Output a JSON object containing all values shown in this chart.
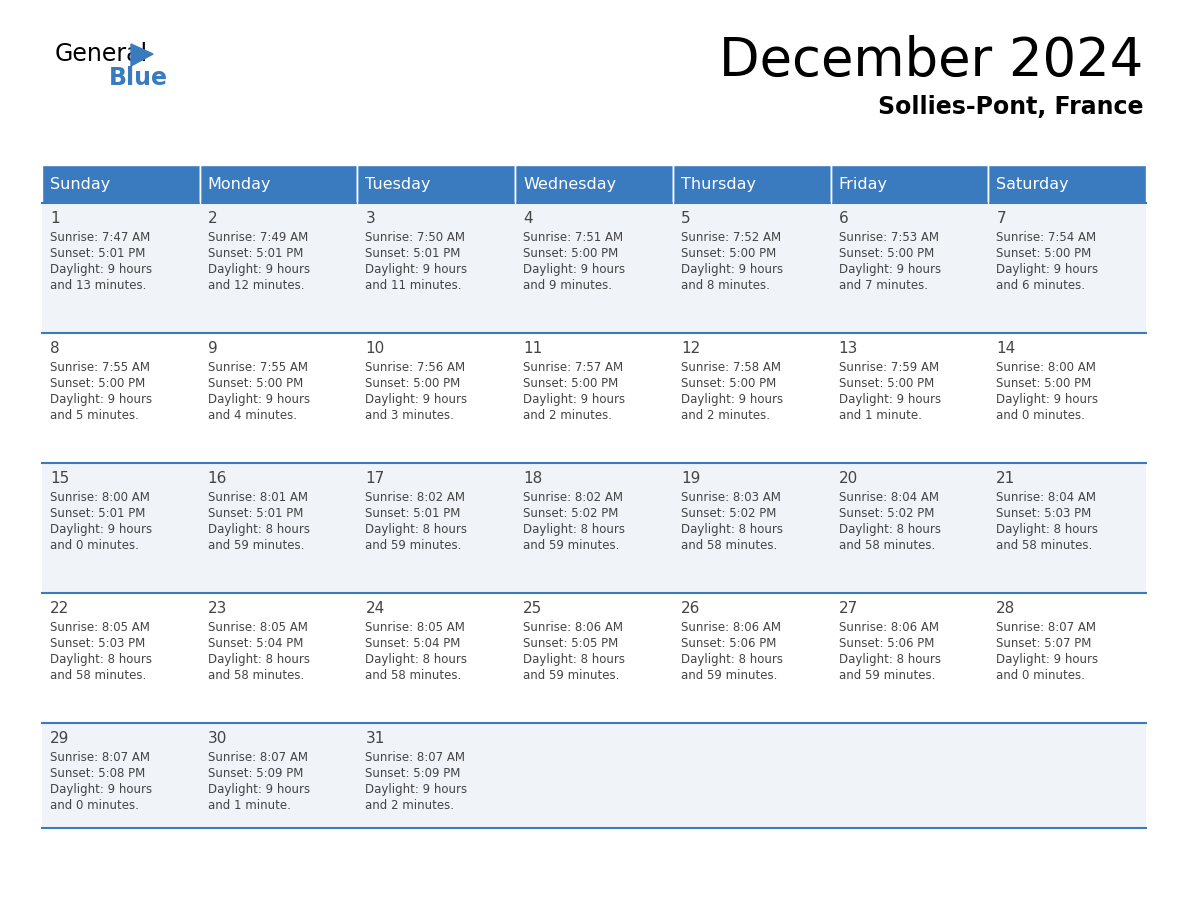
{
  "title": "December 2024",
  "subtitle": "Sollies-Pont, France",
  "header_color": "#3a7abf",
  "header_text_color": "#ffffff",
  "border_color": "#3a7abf",
  "text_color": "#444444",
  "days_of_week": [
    "Sunday",
    "Monday",
    "Tuesday",
    "Wednesday",
    "Thursday",
    "Friday",
    "Saturday"
  ],
  "calendar_data": [
    [
      {
        "day": 1,
        "sunrise": "7:47 AM",
        "sunset": "5:01 PM",
        "daylight_h": "9 hours",
        "daylight_m": "and 13 minutes."
      },
      {
        "day": 2,
        "sunrise": "7:49 AM",
        "sunset": "5:01 PM",
        "daylight_h": "9 hours",
        "daylight_m": "and 12 minutes."
      },
      {
        "day": 3,
        "sunrise": "7:50 AM",
        "sunset": "5:01 PM",
        "daylight_h": "9 hours",
        "daylight_m": "and 11 minutes."
      },
      {
        "day": 4,
        "sunrise": "7:51 AM",
        "sunset": "5:00 PM",
        "daylight_h": "9 hours",
        "daylight_m": "and 9 minutes."
      },
      {
        "day": 5,
        "sunrise": "7:52 AM",
        "sunset": "5:00 PM",
        "daylight_h": "9 hours",
        "daylight_m": "and 8 minutes."
      },
      {
        "day": 6,
        "sunrise": "7:53 AM",
        "sunset": "5:00 PM",
        "daylight_h": "9 hours",
        "daylight_m": "and 7 minutes."
      },
      {
        "day": 7,
        "sunrise": "7:54 AM",
        "sunset": "5:00 PM",
        "daylight_h": "9 hours",
        "daylight_m": "and 6 minutes."
      }
    ],
    [
      {
        "day": 8,
        "sunrise": "7:55 AM",
        "sunset": "5:00 PM",
        "daylight_h": "9 hours",
        "daylight_m": "and 5 minutes."
      },
      {
        "day": 9,
        "sunrise": "7:55 AM",
        "sunset": "5:00 PM",
        "daylight_h": "9 hours",
        "daylight_m": "and 4 minutes."
      },
      {
        "day": 10,
        "sunrise": "7:56 AM",
        "sunset": "5:00 PM",
        "daylight_h": "9 hours",
        "daylight_m": "and 3 minutes."
      },
      {
        "day": 11,
        "sunrise": "7:57 AM",
        "sunset": "5:00 PM",
        "daylight_h": "9 hours",
        "daylight_m": "and 2 minutes."
      },
      {
        "day": 12,
        "sunrise": "7:58 AM",
        "sunset": "5:00 PM",
        "daylight_h": "9 hours",
        "daylight_m": "and 2 minutes."
      },
      {
        "day": 13,
        "sunrise": "7:59 AM",
        "sunset": "5:00 PM",
        "daylight_h": "9 hours",
        "daylight_m": "and 1 minute."
      },
      {
        "day": 14,
        "sunrise": "8:00 AM",
        "sunset": "5:00 PM",
        "daylight_h": "9 hours",
        "daylight_m": "and 0 minutes."
      }
    ],
    [
      {
        "day": 15,
        "sunrise": "8:00 AM",
        "sunset": "5:01 PM",
        "daylight_h": "9 hours",
        "daylight_m": "and 0 minutes."
      },
      {
        "day": 16,
        "sunrise": "8:01 AM",
        "sunset": "5:01 PM",
        "daylight_h": "8 hours",
        "daylight_m": "and 59 minutes."
      },
      {
        "day": 17,
        "sunrise": "8:02 AM",
        "sunset": "5:01 PM",
        "daylight_h": "8 hours",
        "daylight_m": "and 59 minutes."
      },
      {
        "day": 18,
        "sunrise": "8:02 AM",
        "sunset": "5:02 PM",
        "daylight_h": "8 hours",
        "daylight_m": "and 59 minutes."
      },
      {
        "day": 19,
        "sunrise": "8:03 AM",
        "sunset": "5:02 PM",
        "daylight_h": "8 hours",
        "daylight_m": "and 58 minutes."
      },
      {
        "day": 20,
        "sunrise": "8:04 AM",
        "sunset": "5:02 PM",
        "daylight_h": "8 hours",
        "daylight_m": "and 58 minutes."
      },
      {
        "day": 21,
        "sunrise": "8:04 AM",
        "sunset": "5:03 PM",
        "daylight_h": "8 hours",
        "daylight_m": "and 58 minutes."
      }
    ],
    [
      {
        "day": 22,
        "sunrise": "8:05 AM",
        "sunset": "5:03 PM",
        "daylight_h": "8 hours",
        "daylight_m": "and 58 minutes."
      },
      {
        "day": 23,
        "sunrise": "8:05 AM",
        "sunset": "5:04 PM",
        "daylight_h": "8 hours",
        "daylight_m": "and 58 minutes."
      },
      {
        "day": 24,
        "sunrise": "8:05 AM",
        "sunset": "5:04 PM",
        "daylight_h": "8 hours",
        "daylight_m": "and 58 minutes."
      },
      {
        "day": 25,
        "sunrise": "8:06 AM",
        "sunset": "5:05 PM",
        "daylight_h": "8 hours",
        "daylight_m": "and 59 minutes."
      },
      {
        "day": 26,
        "sunrise": "8:06 AM",
        "sunset": "5:06 PM",
        "daylight_h": "8 hours",
        "daylight_m": "and 59 minutes."
      },
      {
        "day": 27,
        "sunrise": "8:06 AM",
        "sunset": "5:06 PM",
        "daylight_h": "8 hours",
        "daylight_m": "and 59 minutes."
      },
      {
        "day": 28,
        "sunrise": "8:07 AM",
        "sunset": "5:07 PM",
        "daylight_h": "9 hours",
        "daylight_m": "and 0 minutes."
      }
    ],
    [
      {
        "day": 29,
        "sunrise": "8:07 AM",
        "sunset": "5:08 PM",
        "daylight_h": "9 hours",
        "daylight_m": "and 0 minutes."
      },
      {
        "day": 30,
        "sunrise": "8:07 AM",
        "sunset": "5:09 PM",
        "daylight_h": "9 hours",
        "daylight_m": "and 1 minute."
      },
      {
        "day": 31,
        "sunrise": "8:07 AM",
        "sunset": "5:09 PM",
        "daylight_h": "9 hours",
        "daylight_m": "and 2 minutes."
      },
      null,
      null,
      null,
      null
    ]
  ],
  "fig_width": 11.88,
  "fig_height": 9.18,
  "dpi": 100
}
